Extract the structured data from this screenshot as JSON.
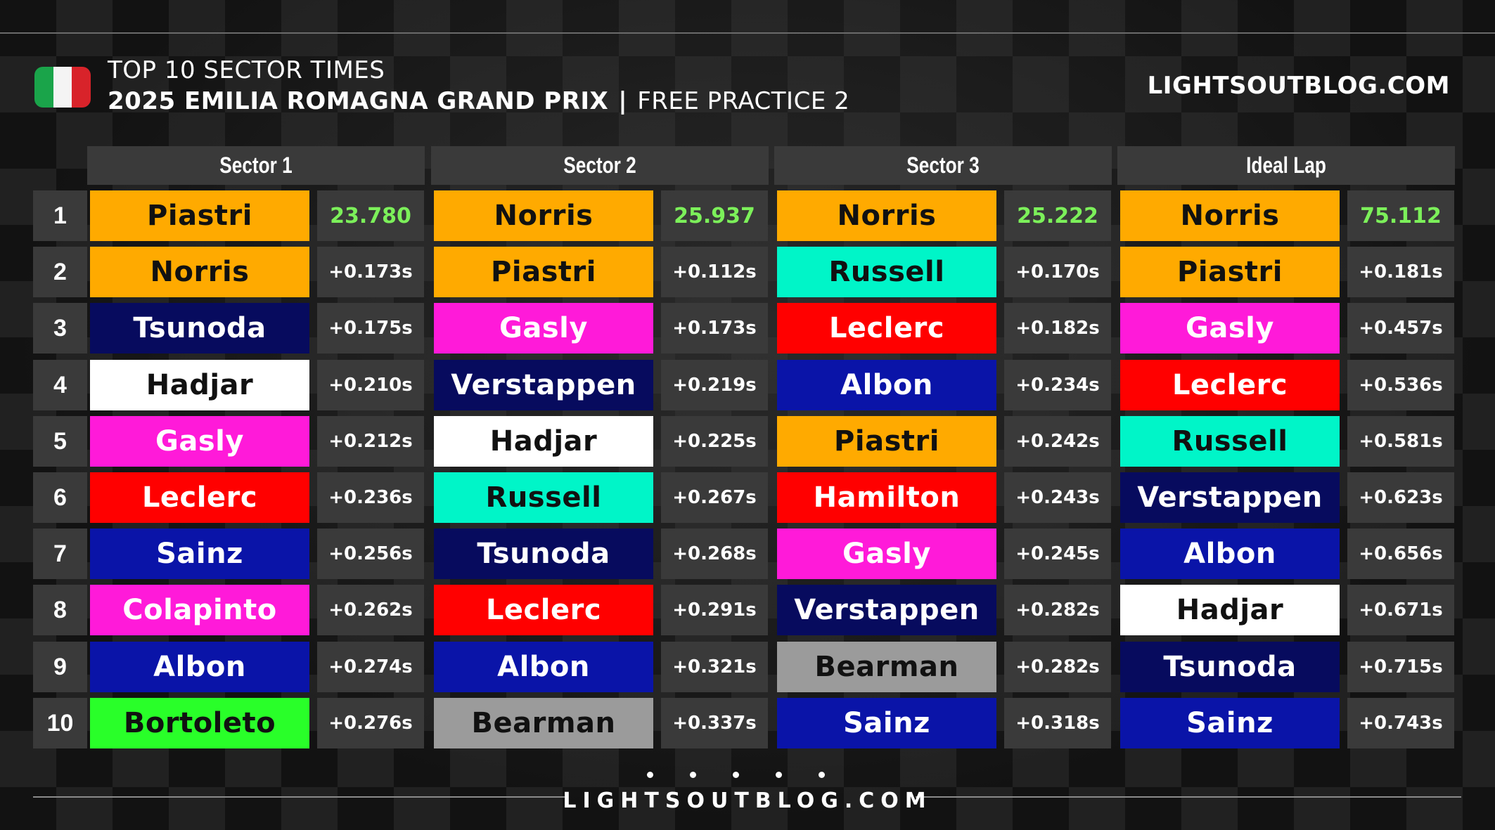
{
  "header": {
    "title": "TOP 10 SECTOR TIMES",
    "event": "2025 EMILIA ROMAGNA GRAND PRIX",
    "separator": "|",
    "session": "FREE PRACTICE 2",
    "brand": "LIGHTSOUTBLOG.COM",
    "flag_colors": [
      "#1aa44a",
      "#f4f4f4",
      "#d8232a"
    ]
  },
  "footer": {
    "brand": "LIGHTSOUTBLOG.COM"
  },
  "ranks": [
    "1",
    "2",
    "3",
    "4",
    "5",
    "6",
    "7",
    "8",
    "9",
    "10"
  ],
  "team_colors": {
    "mclaren": "#ffaa00",
    "racing_bulls": "#070b5e",
    "white": "#ffffff",
    "alpine": "#ff1ad9",
    "ferrari": "#ff0000",
    "williams": "#0a14a8",
    "sauber": "#29ff29",
    "mercedes": "#00f5c8",
    "red_bull": "#070b5e",
    "haas": "#9b9b9b",
    "best_time": "#7cf05a"
  },
  "columns": [
    {
      "header": "Sector 1",
      "rows": [
        {
          "driver": "Piastri",
          "time": "23.780",
          "bg": "#ffaa00",
          "fg": "#111111"
        },
        {
          "driver": "Norris",
          "time": "+0.173s",
          "bg": "#ffaa00",
          "fg": "#111111"
        },
        {
          "driver": "Tsunoda",
          "time": "+0.175s",
          "bg": "#070b5e",
          "fg": "#ffffff"
        },
        {
          "driver": "Hadjar",
          "time": "+0.210s",
          "bg": "#ffffff",
          "fg": "#111111"
        },
        {
          "driver": "Gasly",
          "time": "+0.212s",
          "bg": "#ff1ad9",
          "fg": "#ffffff"
        },
        {
          "driver": "Leclerc",
          "time": "+0.236s",
          "bg": "#ff0000",
          "fg": "#ffffff"
        },
        {
          "driver": "Sainz",
          "time": "+0.256s",
          "bg": "#0a14a8",
          "fg": "#ffffff"
        },
        {
          "driver": "Colapinto",
          "time": "+0.262s",
          "bg": "#ff1ad9",
          "fg": "#ffffff"
        },
        {
          "driver": "Albon",
          "time": "+0.274s",
          "bg": "#0a14a8",
          "fg": "#ffffff"
        },
        {
          "driver": "Bortoleto",
          "time": "+0.276s",
          "bg": "#29ff29",
          "fg": "#111111"
        }
      ]
    },
    {
      "header": "Sector 2",
      "rows": [
        {
          "driver": "Norris",
          "time": "25.937",
          "bg": "#ffaa00",
          "fg": "#111111"
        },
        {
          "driver": "Piastri",
          "time": "+0.112s",
          "bg": "#ffaa00",
          "fg": "#111111"
        },
        {
          "driver": "Gasly",
          "time": "+0.173s",
          "bg": "#ff1ad9",
          "fg": "#ffffff"
        },
        {
          "driver": "Verstappen",
          "time": "+0.219s",
          "bg": "#070b5e",
          "fg": "#ffffff"
        },
        {
          "driver": "Hadjar",
          "time": "+0.225s",
          "bg": "#ffffff",
          "fg": "#111111"
        },
        {
          "driver": "Russell",
          "time": "+0.267s",
          "bg": "#00f5c8",
          "fg": "#111111"
        },
        {
          "driver": "Tsunoda",
          "time": "+0.268s",
          "bg": "#070b5e",
          "fg": "#ffffff"
        },
        {
          "driver": "Leclerc",
          "time": "+0.291s",
          "bg": "#ff0000",
          "fg": "#ffffff"
        },
        {
          "driver": "Albon",
          "time": "+0.321s",
          "bg": "#0a14a8",
          "fg": "#ffffff"
        },
        {
          "driver": "Bearman",
          "time": "+0.337s",
          "bg": "#9b9b9b",
          "fg": "#111111"
        }
      ]
    },
    {
      "header": "Sector 3",
      "rows": [
        {
          "driver": "Norris",
          "time": "25.222",
          "bg": "#ffaa00",
          "fg": "#111111"
        },
        {
          "driver": "Russell",
          "time": "+0.170s",
          "bg": "#00f5c8",
          "fg": "#111111"
        },
        {
          "driver": "Leclerc",
          "time": "+0.182s",
          "bg": "#ff0000",
          "fg": "#ffffff"
        },
        {
          "driver": "Albon",
          "time": "+0.234s",
          "bg": "#0a14a8",
          "fg": "#ffffff"
        },
        {
          "driver": "Piastri",
          "time": "+0.242s",
          "bg": "#ffaa00",
          "fg": "#111111"
        },
        {
          "driver": "Hamilton",
          "time": "+0.243s",
          "bg": "#ff0000",
          "fg": "#ffffff"
        },
        {
          "driver": "Gasly",
          "time": "+0.245s",
          "bg": "#ff1ad9",
          "fg": "#ffffff"
        },
        {
          "driver": "Verstappen",
          "time": "+0.282s",
          "bg": "#070b5e",
          "fg": "#ffffff"
        },
        {
          "driver": "Bearman",
          "time": "+0.282s",
          "bg": "#9b9b9b",
          "fg": "#111111"
        },
        {
          "driver": "Sainz",
          "time": "+0.318s",
          "bg": "#0a14a8",
          "fg": "#ffffff"
        }
      ]
    },
    {
      "header": "Ideal Lap",
      "rows": [
        {
          "driver": "Norris",
          "time": "75.112",
          "bg": "#ffaa00",
          "fg": "#111111"
        },
        {
          "driver": "Piastri",
          "time": "+0.181s",
          "bg": "#ffaa00",
          "fg": "#111111"
        },
        {
          "driver": "Gasly",
          "time": "+0.457s",
          "bg": "#ff1ad9",
          "fg": "#ffffff"
        },
        {
          "driver": "Leclerc",
          "time": "+0.536s",
          "bg": "#ff0000",
          "fg": "#ffffff"
        },
        {
          "driver": "Russell",
          "time": "+0.581s",
          "bg": "#00f5c8",
          "fg": "#111111"
        },
        {
          "driver": "Verstappen",
          "time": "+0.623s",
          "bg": "#070b5e",
          "fg": "#ffffff"
        },
        {
          "driver": "Albon",
          "time": "+0.656s",
          "bg": "#0a14a8",
          "fg": "#ffffff"
        },
        {
          "driver": "Hadjar",
          "time": "+0.671s",
          "bg": "#ffffff",
          "fg": "#111111"
        },
        {
          "driver": "Tsunoda",
          "time": "+0.715s",
          "bg": "#070b5e",
          "fg": "#ffffff"
        },
        {
          "driver": "Sainz",
          "time": "+0.743s",
          "bg": "#0a14a8",
          "fg": "#ffffff"
        }
      ]
    }
  ]
}
